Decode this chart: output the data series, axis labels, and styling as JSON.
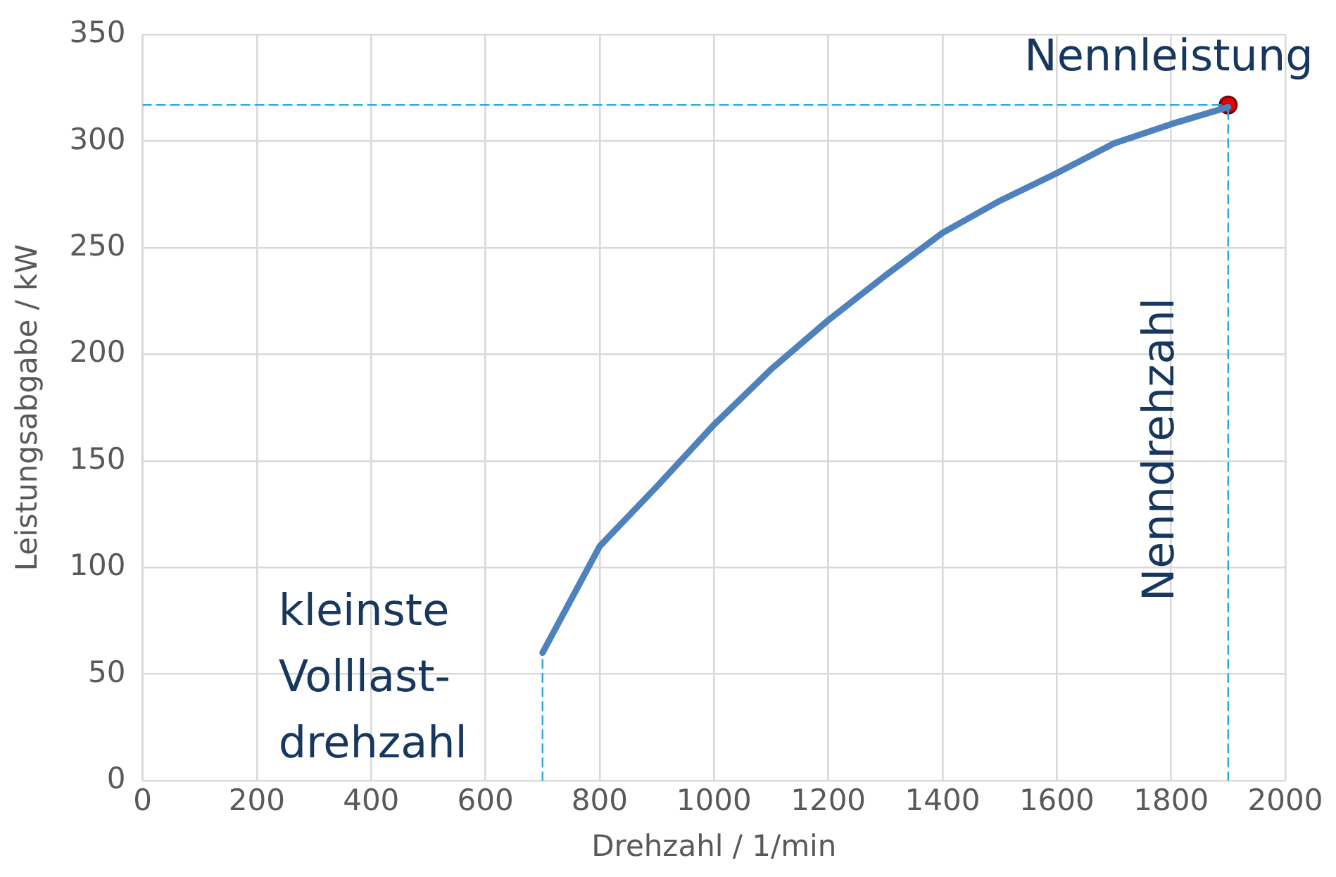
{
  "chart_data": {
    "type": "line",
    "xlabel": "Drehzahl / 1/min",
    "ylabel": "Leistungsabgabe / kW",
    "xlim": [
      0,
      2000
    ],
    "xticks": [
      0,
      200,
      400,
      600,
      800,
      1000,
      1200,
      1400,
      1600,
      1800,
      2000
    ],
    "ylim": [
      0,
      350
    ],
    "yticks": [
      0,
      50,
      100,
      150,
      200,
      250,
      300,
      350
    ],
    "grid": true,
    "legend": false,
    "marker": "none",
    "line_style": "solid",
    "series": [
      {
        "color": "#4f81bd",
        "x": [
          700,
          800,
          900,
          1000,
          1100,
          1200,
          1300,
          1400,
          1500,
          1600,
          1700,
          1800,
          1900
        ],
        "values": [
          60,
          110,
          138,
          167,
          193,
          216,
          237,
          257,
          272,
          285,
          299,
          308,
          316
        ]
      },
      {
        "type": "line",
        "line_style": "dashed",
        "color": "#2aa7de",
        "x": [
          0,
          1900
        ],
        "values": [
          317,
          317
        ]
      },
      {
        "type": "line",
        "line_style": "dashed",
        "color": "#2aa7de",
        "x": [
          1900,
          1900
        ],
        "values": [
          0,
          317
        ]
      },
      {
        "type": "line",
        "line_style": "dashed",
        "color": "#2aa7de",
        "x": [
          700,
          700
        ],
        "values": [
          0,
          60
        ]
      },
      {
        "type": "scatter",
        "marker": "circle",
        "color": "#e00000",
        "x": [
          1900
        ],
        "values": [
          317
        ]
      }
    ],
    "annotations": [
      "Nennleistung",
      "Nenndrehzahl",
      "kleinste\nVolllast-\ndrehzahl"
    ]
  }
}
